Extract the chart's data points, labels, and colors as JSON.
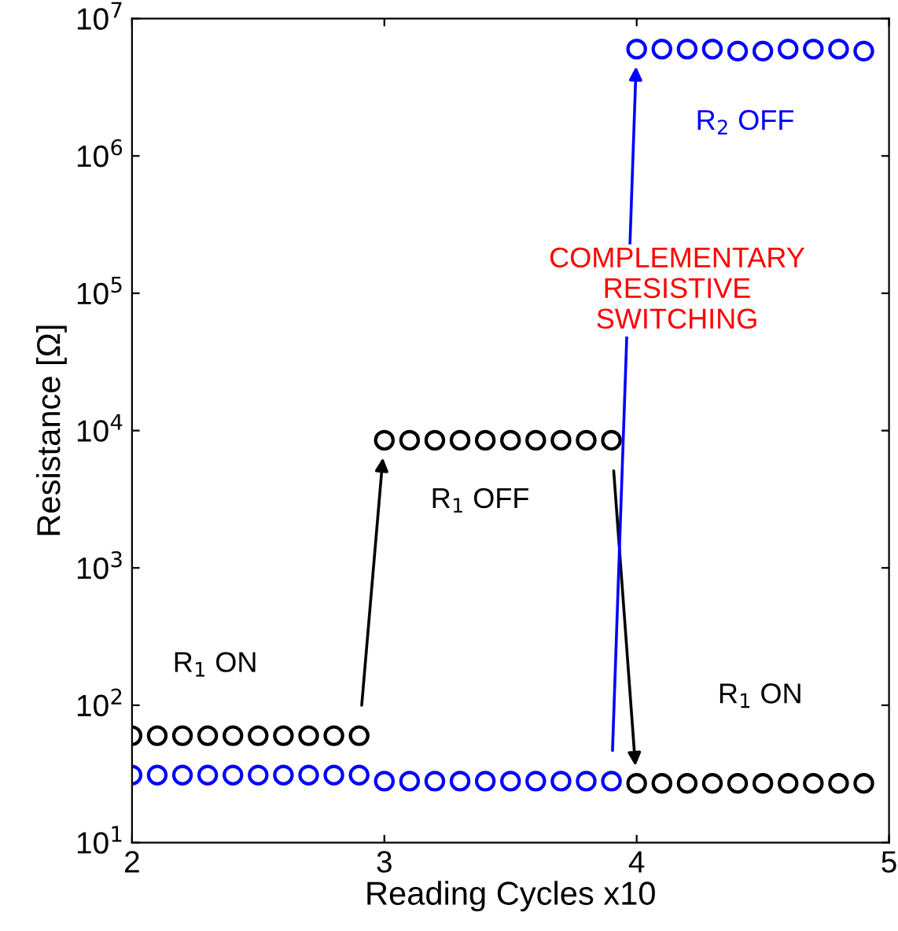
{
  "chart_data": {
    "type": "scatter",
    "xlabel": "Reading Cycles x10",
    "ylabel": "Resistance [Ω]",
    "xlim": [
      2,
      5
    ],
    "xticks": [
      2,
      3,
      4,
      5
    ],
    "ylim": [
      10,
      10000000
    ],
    "log": "y",
    "yticks": [
      {
        "value": 10,
        "label": "10$^{1}$"
      },
      {
        "value": 100,
        "label": "10$^{2}$"
      },
      {
        "value": 1000,
        "label": "10$^{3}$"
      },
      {
        "value": 10000,
        "label": "10$^{4}$"
      },
      {
        "value": 100000,
        "label": "10$^{5}$"
      },
      {
        "value": 1000000,
        "label": "10$^{6}$"
      },
      {
        "value": 10000000,
        "label": "10$^{7}$"
      }
    ],
    "x": [
      2.0,
      2.1,
      2.2,
      2.3,
      2.4,
      2.5,
      2.6,
      2.7,
      2.8,
      2.9,
      3.0,
      3.1,
      3.2,
      3.3,
      3.4,
      3.5,
      3.6,
      3.7,
      3.8,
      3.9,
      4.0,
      4.1,
      4.2,
      4.3,
      4.4,
      4.5,
      4.6,
      4.7,
      4.8,
      4.9
    ],
    "marker": "circle",
    "grid": false,
    "legend": false,
    "series": [
      {
        "color": "#000000",
        "values": [
          60,
          60,
          60,
          60,
          60,
          60,
          60,
          60,
          60,
          60,
          8500,
          8500,
          8500,
          8500,
          8500,
          8500,
          8500,
          8500,
          8500,
          8500,
          27,
          27,
          27,
          27,
          27,
          27,
          27,
          27,
          27,
          27
        ]
      },
      {
        "color": "#0000ff",
        "values": [
          31,
          31,
          31,
          31,
          31,
          31,
          31,
          31,
          31,
          31,
          28,
          28,
          28,
          28,
          28,
          28,
          28,
          28,
          28,
          28,
          6000000,
          6000000,
          6000000,
          6000000,
          5800000,
          5800000,
          6000000,
          6000000,
          6000000,
          5800000
        ]
      }
    ],
    "annotations": [
      "R$_{1}$ ON",
      "R$_{1}$ OFF",
      "R$_{1}$ ON",
      "R$_{2}$ OFF",
      "COMPLEMENTARY\nRESISTIVE\nSWITCHING"
    ]
  }
}
